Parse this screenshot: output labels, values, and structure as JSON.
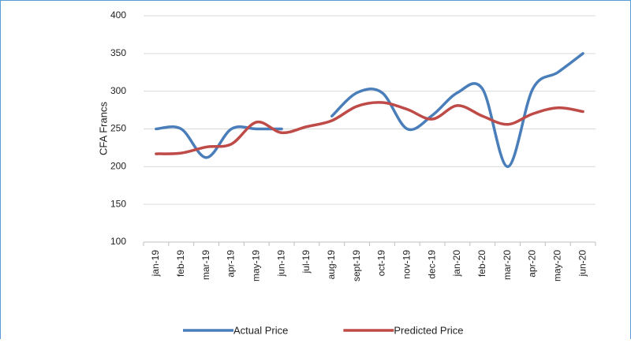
{
  "chart_data": {
    "type": "line",
    "y_label": "CFA Francs",
    "categories": [
      "jan-19",
      "feb-19",
      "mar-19",
      "apr-19",
      "may-19",
      "jun-19",
      "jul-19",
      "aug-19",
      "sept-19",
      "oct-19",
      "nov-19",
      "dec-19",
      "jan-20",
      "feb-20",
      "mar-20",
      "apr-20",
      "may-20",
      "jun-20"
    ],
    "series": [
      {
        "name": "Actual Price",
        "color": "#4a7ebb",
        "values": [
          250,
          250,
          212,
          250,
          250,
          250,
          null,
          267,
          298,
          298,
          250,
          268,
          298,
          303,
          200,
          303,
          325,
          350
        ]
      },
      {
        "name": "Predicted Price",
        "color": "#be4b48",
        "values": [
          217,
          218,
          226,
          230,
          259,
          245,
          253,
          261,
          280,
          285,
          276,
          263,
          281,
          267,
          256,
          270,
          278,
          273
        ]
      }
    ],
    "ylim": [
      100,
      400
    ],
    "yticks": [
      100,
      150,
      200,
      250,
      300,
      350,
      400
    ],
    "grid": true,
    "legend": "bottom",
    "smooth": true
  }
}
